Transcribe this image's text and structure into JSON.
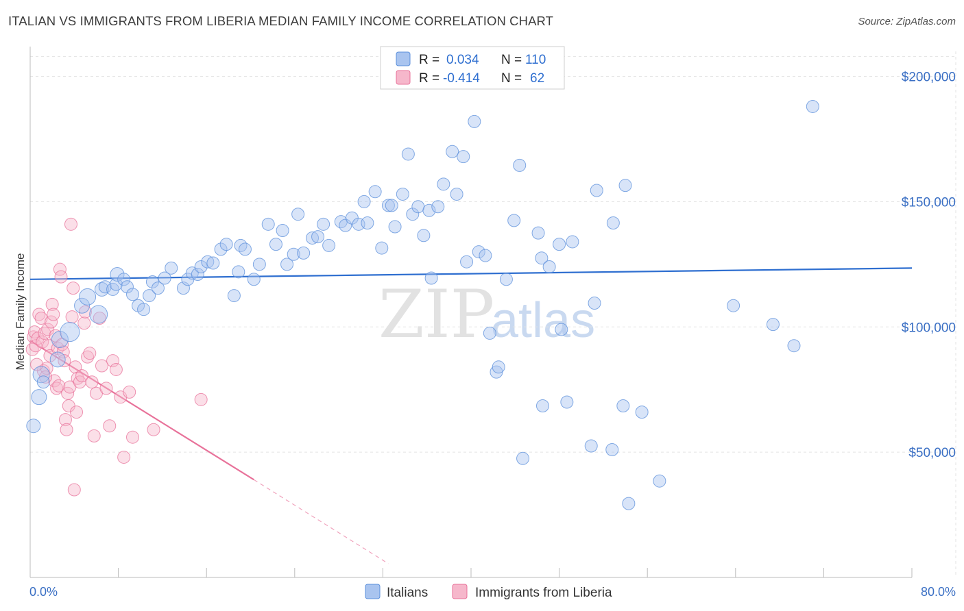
{
  "header": {
    "title": "ITALIAN VS IMMIGRANTS FROM LIBERIA MEDIAN FAMILY INCOME CORRELATION CHART",
    "source": "Source: ZipAtlas.com"
  },
  "watermark": {
    "zip": "ZIP",
    "atlas": "atlas"
  },
  "colors": {
    "blue": "#5b8fdb",
    "blue_fill": "#a9c4ef",
    "pink": "#e8729a",
    "pink_fill": "#f6b7cb",
    "axis_text": "#3a6fc4"
  },
  "legend": {
    "rows": [
      {
        "r_label": "R =",
        "r_value": "0.034",
        "n_label": "N =",
        "n_value": "110"
      },
      {
        "r_label": "R =",
        "r_value": "-0.414",
        "n_label": "N =",
        "n_value": "62"
      }
    ]
  },
  "chart_data": {
    "type": "scatter",
    "title": "ITALIAN VS IMMIGRANTS FROM LIBERIA MEDIAN FAMILY INCOME CORRELATION CHART",
    "xlabel": "",
    "ylabel": "Median Family Income",
    "xlim": [
      0,
      80
    ],
    "ylim": [
      0,
      210000
    ],
    "x_tick_labels": [
      "0.0%",
      "80.0%"
    ],
    "y_ticks": [
      50000,
      100000,
      150000,
      200000
    ],
    "y_tick_labels": [
      "$50,000",
      "$100,000",
      "$150,000",
      "$200,000"
    ],
    "grid": true,
    "legend_position": "top-center",
    "series": [
      {
        "name": "Italians",
        "r": 0.034,
        "n": 110,
        "trend": {
          "x": [
            0,
            80
          ],
          "y": [
            119000,
            123500
          ]
        },
        "points": [
          [
            0.3,
            60500,
            20
          ],
          [
            0.8,
            72000,
            22
          ],
          [
            1.0,
            81000,
            24
          ],
          [
            1.2,
            78000,
            18
          ],
          [
            2.5,
            87000,
            22
          ],
          [
            2.7,
            95000,
            24
          ],
          [
            3.6,
            98000,
            28
          ],
          [
            4.7,
            108500,
            22
          ],
          [
            5.2,
            112000,
            24
          ],
          [
            6.2,
            105000,
            26
          ],
          [
            6.5,
            115000,
            20
          ],
          [
            6.8,
            116000,
            18
          ],
          [
            7.5,
            115000,
            18
          ],
          [
            7.8,
            117000,
            18
          ],
          [
            7.9,
            121000,
            20
          ],
          [
            8.5,
            119000,
            18
          ],
          [
            8.8,
            116000,
            18
          ],
          [
            9.3,
            113000,
            18
          ],
          [
            9.8,
            108500,
            18
          ],
          [
            10.3,
            107000,
            18
          ],
          [
            10.8,
            112500,
            18
          ],
          [
            11.1,
            118000,
            18
          ],
          [
            11.6,
            115500,
            18
          ],
          [
            12.2,
            119500,
            18
          ],
          [
            12.8,
            123500,
            18
          ],
          [
            13.9,
            115500,
            18
          ],
          [
            14.3,
            119000,
            18
          ],
          [
            14.7,
            121500,
            18
          ],
          [
            15.2,
            121000,
            18
          ],
          [
            15.5,
            124000,
            18
          ],
          [
            16.1,
            126000,
            18
          ],
          [
            16.6,
            125500,
            18
          ],
          [
            17.3,
            131000,
            18
          ],
          [
            17.8,
            133000,
            18
          ],
          [
            18.5,
            112500,
            18
          ],
          [
            18.9,
            122000,
            18
          ],
          [
            19.1,
            132500,
            18
          ],
          [
            19.5,
            131000,
            18
          ],
          [
            20.3,
            119000,
            18
          ],
          [
            20.8,
            125000,
            18
          ],
          [
            21.6,
            141000,
            18
          ],
          [
            22.3,
            133000,
            18
          ],
          [
            22.9,
            138500,
            18
          ],
          [
            23.3,
            125000,
            18
          ],
          [
            23.9,
            129000,
            18
          ],
          [
            24.3,
            145000,
            18
          ],
          [
            24.8,
            129500,
            18
          ],
          [
            25.6,
            135500,
            18
          ],
          [
            26.1,
            136000,
            18
          ],
          [
            26.6,
            141000,
            18
          ],
          [
            27.1,
            132500,
            18
          ],
          [
            28.2,
            142000,
            18
          ],
          [
            28.6,
            140500,
            18
          ],
          [
            29.2,
            143500,
            18
          ],
          [
            29.8,
            141000,
            18
          ],
          [
            30.3,
            150000,
            18
          ],
          [
            30.6,
            141500,
            18
          ],
          [
            31.3,
            154000,
            18
          ],
          [
            31.9,
            131500,
            18
          ],
          [
            32.5,
            148500,
            18
          ],
          [
            32.8,
            148500,
            18
          ],
          [
            33.1,
            140000,
            18
          ],
          [
            33.8,
            153000,
            18
          ],
          [
            34.3,
            169000,
            18
          ],
          [
            34.7,
            145000,
            18
          ],
          [
            35.2,
            148000,
            18
          ],
          [
            35.7,
            136500,
            18
          ],
          [
            36.2,
            146500,
            18
          ],
          [
            36.4,
            119500,
            18
          ],
          [
            37.0,
            148000,
            18
          ],
          [
            37.5,
            157000,
            18
          ],
          [
            38.3,
            170000,
            18
          ],
          [
            38.7,
            153000,
            18
          ],
          [
            39.3,
            168000,
            18
          ],
          [
            39.6,
            126000,
            18
          ],
          [
            40.3,
            182000,
            18
          ],
          [
            40.7,
            130000,
            18
          ],
          [
            41.3,
            128500,
            18
          ],
          [
            41.7,
            97500,
            18
          ],
          [
            42.3,
            82000,
            18
          ],
          [
            42.5,
            84000,
            18
          ],
          [
            43.2,
            119000,
            18
          ],
          [
            43.9,
            142500,
            18
          ],
          [
            44.4,
            164500,
            18
          ],
          [
            44.7,
            47500,
            18
          ],
          [
            46.1,
            137500,
            18
          ],
          [
            46.4,
            127500,
            18
          ],
          [
            46.5,
            68500,
            18
          ],
          [
            47.1,
            124000,
            18
          ],
          [
            48.0,
            133000,
            18
          ],
          [
            48.2,
            99000,
            18
          ],
          [
            48.7,
            70000,
            18
          ],
          [
            49.2,
            134000,
            18
          ],
          [
            50.9,
            52500,
            18
          ],
          [
            51.2,
            109500,
            18
          ],
          [
            51.4,
            154500,
            18
          ],
          [
            52.8,
            51000,
            18
          ],
          [
            52.9,
            141500,
            18
          ],
          [
            53.8,
            68500,
            18
          ],
          [
            54.0,
            156500,
            18
          ],
          [
            54.3,
            29500,
            18
          ],
          [
            55.5,
            66000,
            18
          ],
          [
            57.1,
            38500,
            18
          ],
          [
            63.8,
            108500,
            18
          ],
          [
            67.4,
            101000,
            18
          ],
          [
            69.3,
            92500,
            18
          ],
          [
            71.0,
            188000,
            18
          ]
        ]
      },
      {
        "name": "Immigrants from Liberia",
        "r": -0.414,
        "n": 62,
        "trend": {
          "x": [
            0,
            20.3
          ],
          "y": [
            94500,
            39000
          ]
        },
        "trend_dashed": {
          "x": [
            20.3,
            32.5
          ],
          "y": [
            39000,
            5500
          ]
        },
        "points": [
          [
            0.2,
            91000,
            18
          ],
          [
            0.3,
            96000,
            18
          ],
          [
            0.4,
            98000,
            18
          ],
          [
            0.5,
            92500,
            18
          ],
          [
            0.7,
            95500,
            18
          ],
          [
            0.8,
            105000,
            18
          ],
          [
            1.0,
            103500,
            18
          ],
          [
            1.1,
            94000,
            18
          ],
          [
            1.2,
            82500,
            18
          ],
          [
            1.3,
            97500,
            18
          ],
          [
            1.5,
            83500,
            18
          ],
          [
            1.6,
            99000,
            18
          ],
          [
            1.7,
            92500,
            18
          ],
          [
            1.8,
            88500,
            18
          ],
          [
            1.9,
            102000,
            18
          ],
          [
            2.0,
            109000,
            18
          ],
          [
            2.1,
            105000,
            18
          ],
          [
            2.2,
            78500,
            18
          ],
          [
            2.3,
            96500,
            18
          ],
          [
            2.4,
            75500,
            18
          ],
          [
            2.5,
            91500,
            18
          ],
          [
            2.6,
            76500,
            18
          ],
          [
            2.7,
            123000,
            18
          ],
          [
            2.8,
            120000,
            18
          ],
          [
            2.9,
            93000,
            18
          ],
          [
            3.0,
            90000,
            18
          ],
          [
            3.1,
            86500,
            18
          ],
          [
            3.2,
            63000,
            18
          ],
          [
            3.3,
            59000,
            18
          ],
          [
            3.4,
            73500,
            18
          ],
          [
            3.5,
            68500,
            18
          ],
          [
            3.6,
            76000,
            18
          ],
          [
            3.7,
            141000,
            18
          ],
          [
            3.8,
            104000,
            18
          ],
          [
            3.9,
            115500,
            18
          ],
          [
            4.0,
            35000,
            18
          ],
          [
            4.1,
            84000,
            18
          ],
          [
            4.2,
            66000,
            18
          ],
          [
            4.3,
            79500,
            18
          ],
          [
            4.5,
            78000,
            18
          ],
          [
            4.7,
            80500,
            18
          ],
          [
            4.9,
            101500,
            18
          ],
          [
            5.0,
            106000,
            18
          ],
          [
            5.2,
            88000,
            18
          ],
          [
            5.4,
            89500,
            18
          ],
          [
            5.6,
            78000,
            18
          ],
          [
            5.8,
            56500,
            18
          ],
          [
            6.0,
            73500,
            18
          ],
          [
            6.3,
            103500,
            18
          ],
          [
            6.5,
            84500,
            18
          ],
          [
            6.9,
            75500,
            18
          ],
          [
            7.2,
            60500,
            18
          ],
          [
            7.5,
            86500,
            18
          ],
          [
            7.8,
            83000,
            18
          ],
          [
            8.2,
            72000,
            18
          ],
          [
            8.5,
            48000,
            18
          ],
          [
            9.0,
            74000,
            18
          ],
          [
            9.3,
            56000,
            18
          ],
          [
            11.2,
            59000,
            18
          ],
          [
            15.5,
            71000,
            18
          ],
          [
            0.6,
            85000,
            18
          ],
          [
            1.4,
            80000,
            18
          ]
        ]
      }
    ]
  },
  "bottom_legend": {
    "items": [
      "Italians",
      "Immigrants from Liberia"
    ]
  }
}
